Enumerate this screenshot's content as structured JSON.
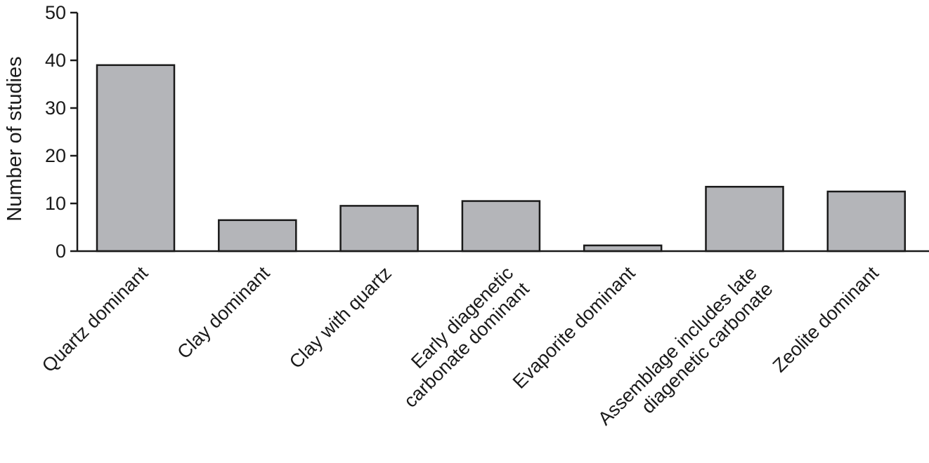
{
  "chart_data": {
    "type": "bar",
    "title": "",
    "xlabel": "",
    "ylabel": "Number of studies",
    "ylim": [
      0,
      50
    ],
    "yticks": [
      0,
      10,
      20,
      30,
      40,
      50
    ],
    "grid": false,
    "bar_color": "#b4b5b9",
    "categories": [
      [
        "Quartz dominant"
      ],
      [
        "Clay dominant"
      ],
      [
        "Clay with quartz"
      ],
      [
        "Early diagenetic",
        "carbonate dominant"
      ],
      [
        "Evaporite dominant"
      ],
      [
        "Assemblage includes late",
        "diagenetic carbonate"
      ],
      [
        "Zeolite dominant"
      ]
    ],
    "values": [
      39,
      6.5,
      9.5,
      10.5,
      1.2,
      13.5,
      12.5
    ]
  }
}
